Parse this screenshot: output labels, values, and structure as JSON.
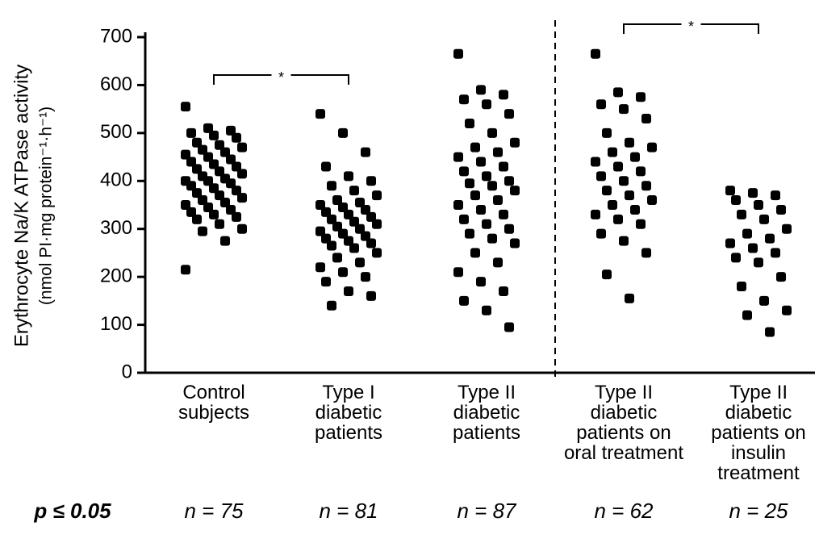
{
  "chart_data": {
    "type": "strip",
    "y_label": "Erythrocyte Na/K ATPase activity",
    "y_label_units": "(nmol PI·mg protein⁻¹·h⁻¹)",
    "categories": [
      "Control subjects",
      "Type I diabetic patients",
      "Type II diabetic patients",
      "Type II diabetic patients on oral treatment",
      "Type II diabetic patients on insulin treatment"
    ],
    "n_labels": [
      "n = 75",
      "n = 81",
      "n = 87",
      "n = 62",
      "n = 25"
    ],
    "p_label": "p ≤ 0.05",
    "annotations": [
      "*",
      "*"
    ],
    "color": "#000000",
    "ylim": [
      0,
      700
    ],
    "yticks": [
      0,
      100,
      200,
      300,
      400,
      500,
      600,
      700
    ],
    "values": [
      [
        555,
        510,
        505,
        500,
        495,
        490,
        480,
        475,
        470,
        465,
        460,
        455,
        450,
        445,
        440,
        435,
        430,
        425,
        420,
        415,
        410,
        405,
        400,
        400,
        395,
        390,
        385,
        380,
        375,
        370,
        365,
        360,
        355,
        350,
        345,
        340,
        335,
        330,
        325,
        320,
        310,
        300,
        295,
        275,
        215
      ],
      [
        540,
        500,
        460,
        430,
        410,
        400,
        390,
        380,
        370,
        360,
        355,
        350,
        345,
        340,
        335,
        330,
        325,
        320,
        315,
        310,
        305,
        300,
        295,
        290,
        285,
        280,
        275,
        270,
        265,
        260,
        250,
        240,
        230,
        220,
        210,
        200,
        190,
        170,
        160,
        140
      ],
      [
        665,
        590,
        580,
        570,
        560,
        540,
        520,
        500,
        480,
        470,
        460,
        450,
        440,
        430,
        420,
        410,
        400,
        395,
        390,
        380,
        370,
        360,
        350,
        340,
        330,
        320,
        310,
        300,
        290,
        280,
        270,
        250,
        230,
        210,
        190,
        170,
        150,
        130,
        95
      ],
      [
        665,
        585,
        575,
        560,
        550,
        530,
        500,
        480,
        470,
        460,
        450,
        440,
        430,
        420,
        410,
        400,
        390,
        380,
        370,
        360,
        350,
        340,
        330,
        320,
        310,
        290,
        275,
        250,
        205,
        155
      ],
      [
        380,
        375,
        370,
        360,
        350,
        340,
        330,
        320,
        300,
        290,
        280,
        270,
        260,
        250,
        240,
        230,
        200,
        180,
        150,
        130,
        120,
        85
      ]
    ]
  }
}
